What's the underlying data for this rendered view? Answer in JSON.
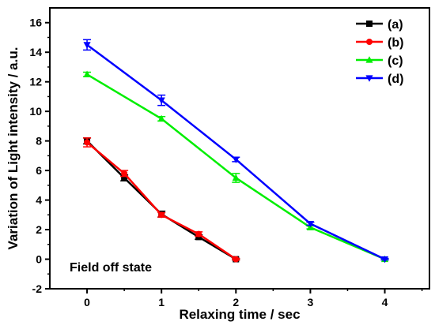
{
  "chart_data": {
    "type": "line",
    "xlabel": "Relaxing time / sec",
    "ylabel": "Variation of Light intensity / a.u.",
    "xlim": [
      -0.5,
      4.6
    ],
    "ylim": [
      -2,
      17
    ],
    "xticks": [
      0,
      1,
      2,
      3,
      4
    ],
    "yticks": [
      -2,
      0,
      2,
      4,
      6,
      8,
      10,
      12,
      14,
      16
    ],
    "grid": false,
    "legend_position": "top-right",
    "annotation": "Field off state",
    "series": [
      {
        "name": "(a)",
        "color": "#000000",
        "marker": "square",
        "x": [
          0,
          0.5,
          1,
          1.5,
          2
        ],
        "y": [
          8.0,
          5.5,
          3.05,
          1.5,
          0.0
        ],
        "err": [
          0.2,
          0.2,
          0.2,
          0.15,
          0.05
        ]
      },
      {
        "name": "(b)",
        "color": "#ff0000",
        "marker": "circle",
        "x": [
          0,
          0.5,
          1,
          1.5,
          2
        ],
        "y": [
          7.9,
          5.8,
          3.0,
          1.7,
          0.0
        ],
        "err": [
          0.3,
          0.2,
          0.15,
          0.15,
          0.05
        ]
      },
      {
        "name": "(c)",
        "color": "#00ee00",
        "marker": "triangle-up",
        "x": [
          0,
          1,
          2,
          3,
          4
        ],
        "y": [
          12.5,
          9.5,
          5.5,
          2.15,
          0.0
        ],
        "err": [
          0.15,
          0.15,
          0.3,
          0.1,
          0.05
        ]
      },
      {
        "name": "(d)",
        "color": "#0000ff",
        "marker": "triangle-down",
        "x": [
          0,
          1,
          2,
          3,
          4
        ],
        "y": [
          14.5,
          10.75,
          6.75,
          2.4,
          0.0
        ],
        "err": [
          0.35,
          0.35,
          0.15,
          0.1,
          0.05
        ]
      }
    ]
  }
}
